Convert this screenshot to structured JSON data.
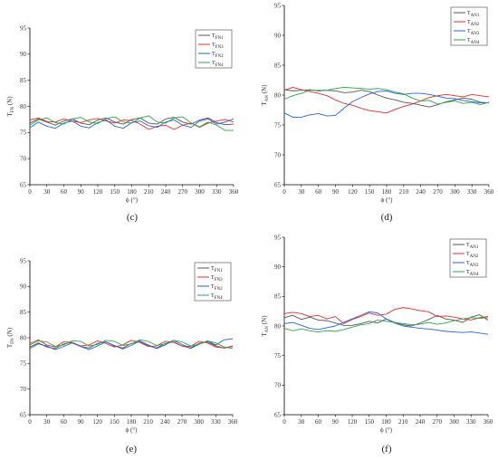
{
  "chart_data": [
    {
      "type": "line",
      "panel_label": "(c)",
      "ylabel": "T_FN (N)",
      "xlabel": "ϕ (°)",
      "xlim": [
        0,
        360
      ],
      "ylim": [
        65,
        95
      ],
      "xticks": [
        0,
        30,
        60,
        90,
        120,
        150,
        180,
        210,
        240,
        270,
        300,
        330,
        360
      ],
      "yticks": [
        65,
        70,
        75,
        80,
        85,
        90,
        95
      ],
      "legend_position": "top-right",
      "grid": false,
      "x": [
        0,
        15,
        30,
        45,
        60,
        75,
        90,
        105,
        120,
        135,
        150,
        165,
        180,
        195,
        210,
        225,
        240,
        255,
        270,
        285,
        300,
        315,
        330,
        345,
        360
      ],
      "series": [
        {
          "name": "T_FN1",
          "color": "#555555",
          "values": [
            76.8,
            77.6,
            77.0,
            76.4,
            77.2,
            77.6,
            76.8,
            76.5,
            77.4,
            77.8,
            77.0,
            76.6,
            77.5,
            77.8,
            76.8,
            76.6,
            77.6,
            77.9,
            77.0,
            76.6,
            77.4,
            77.8,
            76.9,
            76.5,
            76.6
          ]
        },
        {
          "name": "T_FN3",
          "color": "#e03030",
          "values": [
            77.4,
            77.8,
            77.1,
            77.0,
            77.6,
            77.2,
            76.9,
            77.4,
            77.7,
            77.2,
            76.8,
            77.4,
            77.3,
            76.6,
            75.6,
            76.2,
            76.4,
            75.6,
            76.4,
            76.8,
            76.0,
            76.8,
            77.2,
            77.5,
            77.0
          ]
        },
        {
          "name": "T_FN2",
          "color": "#2a62d6",
          "values": [
            75.9,
            77.0,
            76.2,
            75.8,
            76.8,
            77.2,
            76.2,
            75.9,
            76.9,
            77.4,
            76.2,
            75.8,
            76.9,
            77.2,
            76.3,
            76.0,
            77.0,
            77.4,
            76.4,
            76.0,
            77.2,
            77.6,
            76.6,
            77.0,
            77.6
          ]
        },
        {
          "name": "T_FN4",
          "color": "#2aa84a",
          "values": [
            76.4,
            77.4,
            77.8,
            76.9,
            76.6,
            77.6,
            77.9,
            77.0,
            76.7,
            77.7,
            78.0,
            77.0,
            76.8,
            77.8,
            78.2,
            77.0,
            76.8,
            77.8,
            78.0,
            76.8,
            76.1,
            77.0,
            76.4,
            75.4,
            75.4
          ]
        }
      ]
    },
    {
      "type": "line",
      "panel_label": "(d)",
      "ylabel": "T_AN (N)",
      "xlabel": "ϕ (°)",
      "xlim": [
        0,
        360
      ],
      "ylim": [
        65,
        95
      ],
      "xticks": [
        0,
        30,
        60,
        90,
        120,
        150,
        180,
        210,
        240,
        270,
        300,
        330,
        360
      ],
      "yticks": [
        65,
        70,
        75,
        80,
        85,
        90,
        95
      ],
      "legend_position": "top-right",
      "grid": false,
      "x": [
        0,
        15,
        30,
        45,
        60,
        75,
        90,
        105,
        120,
        135,
        150,
        165,
        180,
        195,
        210,
        225,
        240,
        255,
        270,
        285,
        300,
        315,
        330,
        345,
        360
      ],
      "series": [
        {
          "name": "T_AN1",
          "color": "#555555",
          "values": [
            80.9,
            80.7,
            80.8,
            80.9,
            80.7,
            80.8,
            80.7,
            80.4,
            80.5,
            80.8,
            80.6,
            80.0,
            79.5,
            79.2,
            78.8,
            78.6,
            78.3,
            78.0,
            78.4,
            78.9,
            79.2,
            79.5,
            79.3,
            78.8,
            78.7
          ]
        },
        {
          "name": "T_AN2",
          "color": "#e03030",
          "values": [
            80.8,
            81.3,
            80.9,
            80.6,
            80.3,
            79.9,
            79.2,
            78.6,
            78.3,
            77.8,
            77.4,
            77.2,
            77.0,
            77.6,
            78.1,
            78.5,
            79.0,
            79.6,
            79.9,
            80.1,
            79.9,
            79.7,
            80.1,
            79.9,
            79.7
          ]
        },
        {
          "name": "T_AN3",
          "color": "#2a62d6",
          "values": [
            77.0,
            76.3,
            76.3,
            76.7,
            76.9,
            76.5,
            76.6,
            77.8,
            78.9,
            79.6,
            80.2,
            80.6,
            80.7,
            80.3,
            80.1,
            80.3,
            80.3,
            80.1,
            79.8,
            79.5,
            79.4,
            79.1,
            78.9,
            78.7,
            78.7
          ]
        },
        {
          "name": "T_AN4",
          "color": "#2aa84a",
          "values": [
            79.3,
            79.9,
            80.3,
            80.8,
            80.8,
            80.8,
            81.1,
            81.3,
            81.2,
            81.1,
            81.0,
            81.1,
            80.9,
            80.5,
            80.2,
            79.5,
            79.0,
            79.1,
            78.5,
            78.8,
            79.0,
            78.6,
            78.8,
            78.4,
            78.8
          ]
        }
      ]
    },
    {
      "type": "line",
      "panel_label": "(e)",
      "ylabel": "T_FN (N)",
      "xlabel": "ϕ (°)",
      "xlim": [
        0,
        360
      ],
      "ylim": [
        65,
        95
      ],
      "xticks": [
        0,
        30,
        60,
        90,
        120,
        150,
        180,
        210,
        240,
        270,
        300,
        330,
        360
      ],
      "yticks": [
        65,
        70,
        75,
        80,
        85,
        90,
        95
      ],
      "legend_position": "top-right",
      "grid": false,
      "x": [
        0,
        15,
        30,
        45,
        60,
        75,
        90,
        105,
        120,
        135,
        150,
        165,
        180,
        195,
        210,
        225,
        240,
        255,
        270,
        285,
        300,
        315,
        330,
        345,
        360
      ],
      "series": [
        {
          "name": "T_FN1",
          "color": "#555555",
          "values": [
            78.2,
            79.0,
            78.2,
            77.9,
            78.8,
            79.1,
            78.3,
            78.0,
            78.9,
            79.2,
            78.4,
            78.0,
            78.9,
            79.2,
            78.4,
            78.0,
            78.9,
            79.2,
            78.4,
            78.0,
            78.9,
            79.2,
            78.4,
            78.0,
            78.3
          ]
        },
        {
          "name": "T_FN3",
          "color": "#e03030",
          "values": [
            78.9,
            79.6,
            78.6,
            78.2,
            79.2,
            79.1,
            78.4,
            78.6,
            79.4,
            78.9,
            78.2,
            78.6,
            79.5,
            79.1,
            78.3,
            78.4,
            79.3,
            79.1,
            78.4,
            78.3,
            79.3,
            79.0,
            78.2,
            78.0,
            78.4
          ]
        },
        {
          "name": "T_FN2",
          "color": "#2a62d6",
          "values": [
            77.9,
            78.8,
            78.4,
            77.7,
            78.3,
            79.0,
            78.3,
            77.7,
            78.4,
            79.2,
            78.5,
            77.8,
            78.5,
            79.4,
            78.6,
            77.9,
            78.6,
            79.5,
            78.7,
            77.9,
            78.7,
            79.4,
            78.6,
            79.6,
            79.8
          ]
        },
        {
          "name": "T_FN4",
          "color": "#2aa84a",
          "values": [
            78.6,
            79.4,
            79.2,
            78.3,
            78.6,
            79.4,
            79.3,
            78.4,
            78.7,
            79.5,
            79.3,
            78.5,
            78.8,
            79.6,
            79.3,
            78.5,
            78.8,
            79.5,
            79.2,
            78.4,
            78.7,
            79.4,
            79.0,
            78.2,
            77.9
          ]
        }
      ]
    },
    {
      "type": "line",
      "panel_label": "(f)",
      "ylabel": "T_AN (N)",
      "xlabel": "ϕ (°)",
      "xlim": [
        0,
        360
      ],
      "ylim": [
        65,
        95
      ],
      "xticks": [
        0,
        30,
        60,
        90,
        120,
        150,
        180,
        210,
        240,
        270,
        300,
        330,
        360
      ],
      "yticks": [
        65,
        70,
        75,
        80,
        85,
        90,
        95
      ],
      "legend_position": "top-right",
      "grid": false,
      "x": [
        0,
        15,
        30,
        45,
        60,
        75,
        90,
        105,
        120,
        135,
        150,
        165,
        180,
        195,
        210,
        225,
        240,
        255,
        270,
        285,
        300,
        315,
        330,
        345,
        360
      ],
      "series": [
        {
          "name": "T_AN1",
          "color": "#555555",
          "values": [
            81.4,
            81.8,
            81.1,
            81.5,
            81.0,
            80.9,
            80.5,
            80.1,
            80.1,
            80.4,
            80.8,
            80.5,
            81.2,
            80.6,
            80.2,
            80.0,
            80.5,
            81.1,
            81.8,
            81.2,
            81.0,
            80.6,
            81.5,
            81.9,
            81.0
          ]
        },
        {
          "name": "T_AN2",
          "color": "#e03030",
          "values": [
            82.1,
            82.3,
            82.1,
            81.6,
            81.8,
            81.2,
            81.6,
            80.4,
            81.1,
            81.6,
            82.2,
            81.8,
            82.0,
            82.8,
            83.1,
            82.9,
            82.6,
            82.4,
            81.6,
            81.7,
            81.5,
            81.2,
            81.0,
            81.4,
            81.6
          ]
        },
        {
          "name": "T_AN3",
          "color": "#2a62d6",
          "values": [
            80.4,
            80.6,
            80.1,
            79.6,
            79.4,
            79.7,
            80.0,
            80.6,
            81.2,
            81.8,
            82.4,
            82.2,
            81.2,
            80.5,
            80.0,
            79.8,
            79.6,
            79.5,
            79.3,
            79.1,
            79.0,
            78.9,
            79.0,
            78.8,
            78.6
          ]
        },
        {
          "name": "T_AN4",
          "color": "#2aa84a",
          "values": [
            79.6,
            79.2,
            79.5,
            79.2,
            79.0,
            79.2,
            79.1,
            79.4,
            79.8,
            80.2,
            80.4,
            81.0,
            80.8,
            80.6,
            80.4,
            80.2,
            80.3,
            80.6,
            80.3,
            80.5,
            80.9,
            81.2,
            81.4,
            81.3,
            81.4
          ]
        }
      ]
    }
  ]
}
